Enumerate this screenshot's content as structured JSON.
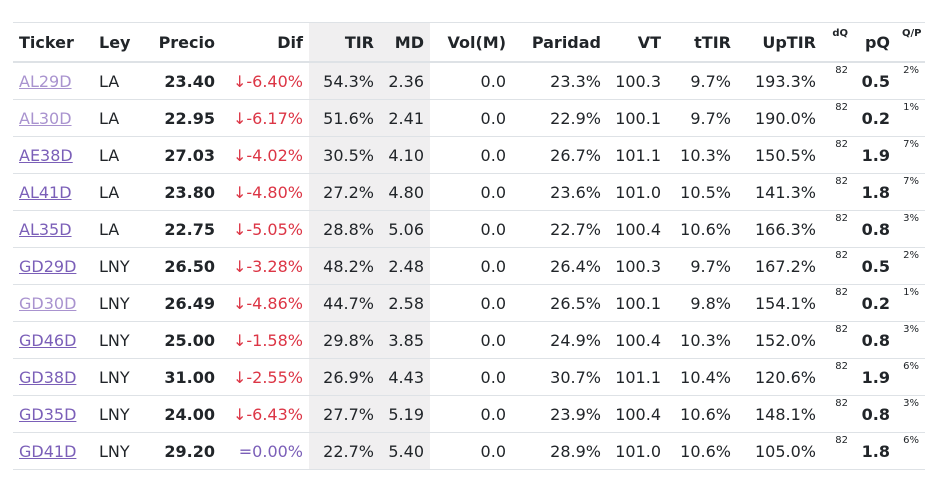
{
  "headers": {
    "ticker": "Ticker",
    "ley": "Ley",
    "precio": "Precio",
    "dif": "Dif",
    "tir": "TIR",
    "md": "MD",
    "vol": "Vol(M)",
    "paridad": "Paridad",
    "vt": "VT",
    "ttir": "tTIR",
    "uptir": "UpTIR",
    "dq": "dQ",
    "pq": "pQ",
    "qp": "Q/P"
  },
  "rows": [
    {
      "ticker": "AL29D",
      "ley": "LA",
      "precio": "23.40",
      "dif": "↓-6.40%",
      "tir": "54.3%",
      "md": "2.36",
      "vol": "0.0",
      "paridad": "23.3%",
      "vt": "100.3",
      "ttir": "9.7%",
      "uptir": "193.3%",
      "dq": "82",
      "pq": "0.5",
      "qp": "2%"
    },
    {
      "ticker": "AL30D",
      "ley": "LA",
      "precio": "22.95",
      "dif": "↓-6.17%",
      "tir": "51.6%",
      "md": "2.41",
      "vol": "0.0",
      "paridad": "22.9%",
      "vt": "100.1",
      "ttir": "9.7%",
      "uptir": "190.0%",
      "dq": "82",
      "pq": "0.2",
      "qp": "1%"
    },
    {
      "ticker": "AE38D",
      "ley": "LA",
      "precio": "27.03",
      "dif": "↓-4.02%",
      "tir": "30.5%",
      "md": "4.10",
      "vol": "0.0",
      "paridad": "26.7%",
      "vt": "101.1",
      "ttir": "10.3%",
      "uptir": "150.5%",
      "dq": "82",
      "pq": "1.9",
      "qp": "7%"
    },
    {
      "ticker": "AL41D",
      "ley": "LA",
      "precio": "23.80",
      "dif": "↓-4.80%",
      "tir": "27.2%",
      "md": "4.80",
      "vol": "0.0",
      "paridad": "23.6%",
      "vt": "101.0",
      "ttir": "10.5%",
      "uptir": "141.3%",
      "dq": "82",
      "pq": "1.8",
      "qp": "7%"
    },
    {
      "ticker": "AL35D",
      "ley": "LA",
      "precio": "22.75",
      "dif": "↓-5.05%",
      "tir": "28.8%",
      "md": "5.06",
      "vol": "0.0",
      "paridad": "22.7%",
      "vt": "100.4",
      "ttir": "10.6%",
      "uptir": "166.3%",
      "dq": "82",
      "pq": "0.8",
      "qp": "3%"
    },
    {
      "ticker": "GD29D",
      "ley": "LNY",
      "precio": "26.50",
      "dif": "↓-3.28%",
      "tir": "48.2%",
      "md": "2.48",
      "vol": "0.0",
      "paridad": "26.4%",
      "vt": "100.3",
      "ttir": "9.7%",
      "uptir": "167.2%",
      "dq": "82",
      "pq": "0.5",
      "qp": "2%"
    },
    {
      "ticker": "GD30D",
      "ley": "LNY",
      "precio": "26.49",
      "dif": "↓-4.86%",
      "tir": "44.7%",
      "md": "2.58",
      "vol": "0.0",
      "paridad": "26.5%",
      "vt": "100.1",
      "ttir": "9.8%",
      "uptir": "154.1%",
      "dq": "82",
      "pq": "0.2",
      "qp": "1%"
    },
    {
      "ticker": "GD46D",
      "ley": "LNY",
      "precio": "25.00",
      "dif": "↓-1.58%",
      "tir": "29.8%",
      "md": "3.85",
      "vol": "0.0",
      "paridad": "24.9%",
      "vt": "100.4",
      "ttir": "10.3%",
      "uptir": "152.0%",
      "dq": "82",
      "pq": "0.8",
      "qp": "3%"
    },
    {
      "ticker": "GD38D",
      "ley": "LNY",
      "precio": "31.00",
      "dif": "↓-2.55%",
      "tir": "26.9%",
      "md": "4.43",
      "vol": "0.0",
      "paridad": "30.7%",
      "vt": "101.1",
      "ttir": "10.4%",
      "uptir": "120.6%",
      "dq": "82",
      "pq": "1.9",
      "qp": "6%"
    },
    {
      "ticker": "GD35D",
      "ley": "LNY",
      "precio": "24.00",
      "dif": "↓-6.43%",
      "tir": "27.7%",
      "md": "5.19",
      "vol": "0.0",
      "paridad": "23.9%",
      "vt": "100.4",
      "ttir": "10.6%",
      "uptir": "148.1%",
      "dq": "82",
      "pq": "0.8",
      "qp": "3%"
    },
    {
      "ticker": "GD41D",
      "ley": "LNY",
      "precio": "29.20",
      "dif": "=0.00%",
      "tir": "22.7%",
      "md": "5.40",
      "vol": "0.0",
      "paridad": "28.9%",
      "vt": "101.0",
      "ttir": "10.6%",
      "uptir": "105.0%",
      "dq": "82",
      "pq": "1.8",
      "qp": "6%"
    }
  ],
  "colors": {
    "link": "#7b5fb8",
    "link_visited": "#a993cf",
    "negative": "#dc3545",
    "shaded_column": "#f0eff0"
  }
}
